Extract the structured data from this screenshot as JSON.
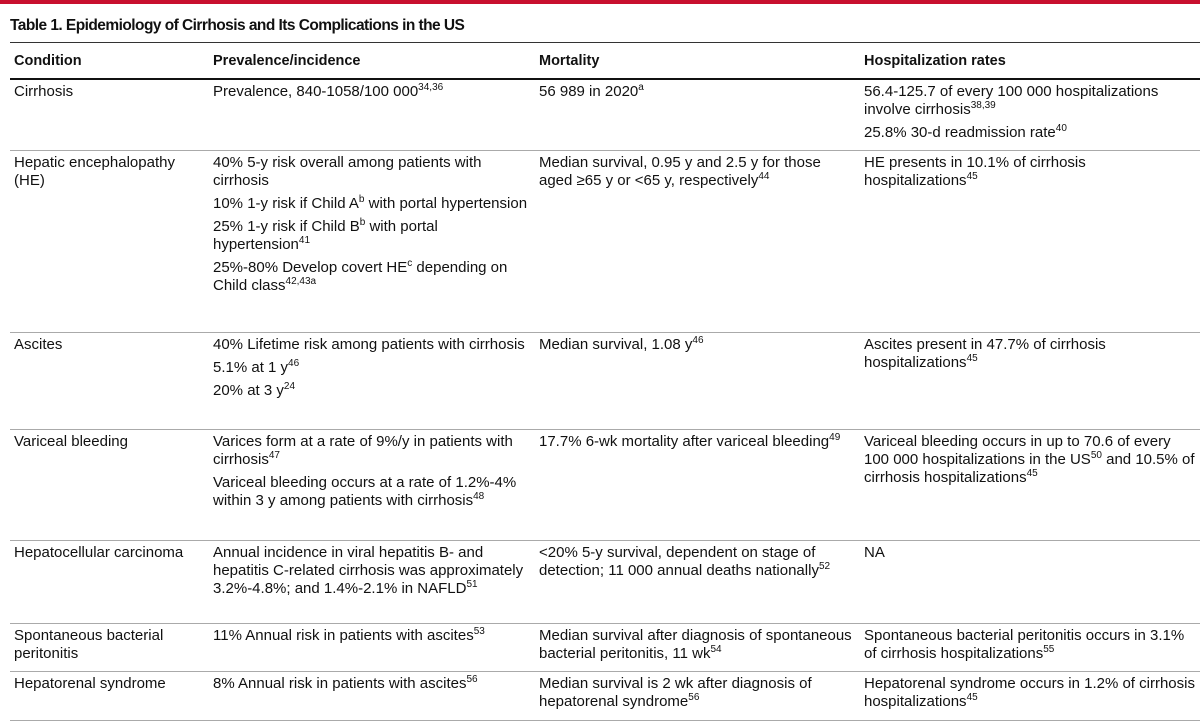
{
  "title": "Table 1. Epidemiology of Cirrhosis and Its Complications in the US",
  "table": {
    "header": [
      "Condition",
      "Prevalence/incidence",
      "Mortality",
      "Hospitalization rates"
    ],
    "rows": [
      [
        [
          [
            {
              "text": "Cirrhosis"
            }
          ]
        ],
        [
          [
            {
              "text": "Prevalence, 840-1058/100 000"
            },
            {
              "sup": "34,36"
            }
          ]
        ],
        [
          [
            {
              "text": "56 989 in 2020"
            },
            {
              "sup": "a"
            }
          ]
        ],
        [
          [
            {
              "text": "56.4-125.7 of every 100 000 hospitalizations involve cirrhosis"
            },
            {
              "sup": "38,39"
            }
          ],
          [
            {
              "text": "25.8% 30-d readmission rate"
            },
            {
              "sup": "40"
            }
          ]
        ]
      ],
      [
        [
          [
            {
              "text": "Hepatic encephalopathy (HE)"
            }
          ]
        ],
        [
          [
            {
              "text": "40% 5-y risk overall among patients with cirrhosis"
            }
          ],
          [
            {
              "text": "10% 1-y risk if Child A"
            },
            {
              "sup": "b"
            },
            {
              "text": " with portal hypertension"
            }
          ],
          [
            {
              "text": "25% 1-y risk if Child B"
            },
            {
              "sup": "b"
            },
            {
              "text": " with portal hypertension"
            },
            {
              "sup": "41"
            }
          ],
          [
            {
              "text": "25%-80% Develop covert HE"
            },
            {
              "sup": "c"
            },
            {
              "text": " depending on Child class"
            },
            {
              "sup": "42,43a"
            }
          ]
        ],
        [
          [
            {
              "text": "Median survival, 0.95 y and 2.5 y for those aged ≥65 y or <65 y, respectively"
            },
            {
              "sup": "44"
            }
          ]
        ],
        [
          [
            {
              "text": "HE presents in 10.1% of cirrhosis hospitalizations"
            },
            {
              "sup": "45"
            }
          ]
        ]
      ],
      [
        [
          [
            {
              "text": "Ascites"
            }
          ]
        ],
        [
          [
            {
              "text": "40% Lifetime risk among patients with cirrhosis"
            }
          ],
          [
            {
              "text": "5.1% at 1 y"
            },
            {
              "sup": "46"
            }
          ],
          [
            {
              "text": "20% at 3 y"
            },
            {
              "sup": "24"
            }
          ]
        ],
        [
          [
            {
              "text": "Median survival, 1.08 y"
            },
            {
              "sup": "46"
            }
          ]
        ],
        [
          [
            {
              "text": "Ascites present in 47.7% of cirrhosis hospitalizations"
            },
            {
              "sup": "45"
            }
          ]
        ]
      ],
      [
        [
          [
            {
              "text": "Variceal bleeding"
            }
          ]
        ],
        [
          [
            {
              "text": "Varices form at a rate of 9%/y in patients with cirrhosis"
            },
            {
              "sup": "47"
            }
          ],
          [
            {
              "text": "Variceal bleeding occurs at a rate of 1.2%-4% within 3 y among patients with cirrhosis"
            },
            {
              "sup": "48"
            }
          ]
        ],
        [
          [
            {
              "text": "17.7% 6-wk mortality after variceal bleeding"
            },
            {
              "sup": "49"
            }
          ]
        ],
        [
          [
            {
              "text": "Variceal bleeding occurs in up to 70.6 of every 100 000 hospitalizations in the US"
            },
            {
              "sup": "50"
            },
            {
              "text": " and 10.5% of cirrhosis hospitalizations"
            },
            {
              "sup": "45"
            }
          ]
        ]
      ],
      [
        [
          [
            {
              "text": "Hepatocellular carcinoma"
            }
          ]
        ],
        [
          [
            {
              "text": "Annual incidence in viral hepatitis B- and hepatitis C-related cirrhosis was approximately 3.2%-4.8%; and 1.4%-2.1% in NAFLD"
            },
            {
              "sup": "51"
            }
          ]
        ],
        [
          [
            {
              "text": "<20% 5-y survival, dependent on stage of detection; 11 000 annual deaths nationally"
            },
            {
              "sup": "52"
            }
          ]
        ],
        [
          [
            {
              "text": "NA"
            }
          ]
        ]
      ],
      [
        [
          [
            {
              "text": "Spontaneous bacterial peritonitis"
            }
          ]
        ],
        [
          [
            {
              "text": "11% Annual risk in patients with ascites"
            },
            {
              "sup": "53"
            }
          ]
        ],
        [
          [
            {
              "text": "Median survival after diagnosis of spontaneous bacterial peritonitis, 11 wk"
            },
            {
              "sup": "54"
            }
          ]
        ],
        [
          [
            {
              "text": "Spontaneous bacterial peritonitis occurs in 3.1% of cirrhosis hospitalizations"
            },
            {
              "sup": "55"
            }
          ]
        ]
      ],
      [
        [
          [
            {
              "text": "Hepatorenal syndrome"
            }
          ]
        ],
        [
          [
            {
              "text": "8% Annual risk in patients with ascites"
            },
            {
              "sup": "56"
            }
          ]
        ],
        [
          [
            {
              "text": "Median survival is 2 wk after diagnosis of hepatorenal syndrome"
            },
            {
              "sup": "56"
            }
          ]
        ],
        [
          [
            {
              "text": "Hepatorenal syndrome occurs in 1.2% of cirrhosis hospitalizations"
            },
            {
              "sup": "45"
            }
          ]
        ]
      ]
    ]
  }
}
